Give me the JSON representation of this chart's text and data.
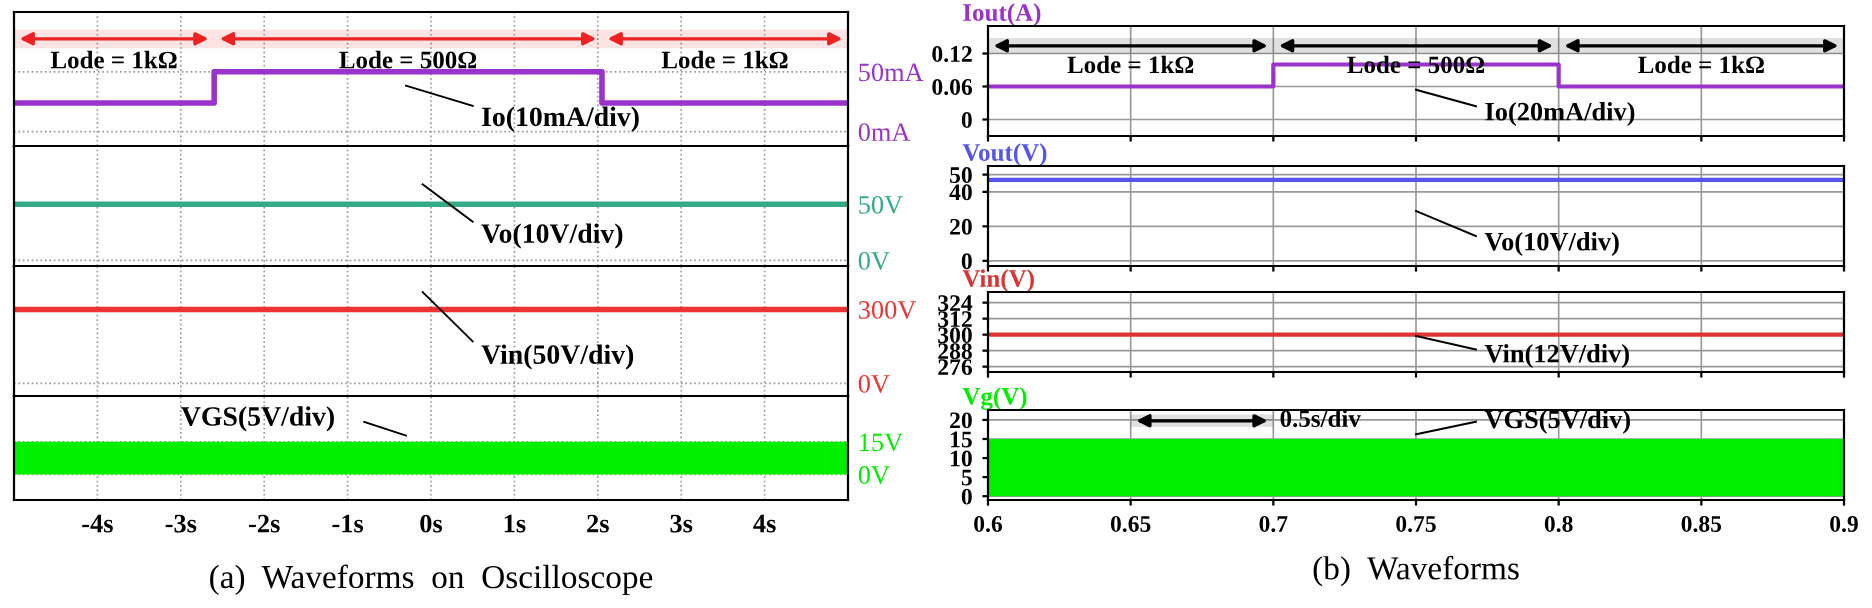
{
  "chart_data": [
    {
      "type": "line",
      "xlim": [
        -5,
        5
      ],
      "xticks": [
        {
          "value": -4,
          "label": null
        },
        {
          "value": -3,
          "label": null
        },
        {
          "value": -2,
          "label": null
        },
        {
          "value": -1,
          "label": null
        },
        {
          "value": 0,
          "label": null
        },
        {
          "value": 1,
          "label": null
        },
        {
          "value": 2,
          "label": null
        },
        {
          "value": 3,
          "label": null
        },
        {
          "value": 4,
          "label": null
        }
      ],
      "ylim": [
        -12,
        100
      ],
      "yticks": [
        {
          "value": 0,
          "label": "0mA"
        },
        {
          "value": 50,
          "label": "50mA"
        }
      ],
      "tick_labels": "y",
      "grid": true,
      "series": [
        {
          "color": "#9933cc",
          "x": [
            -5,
            -2.6,
            -2.6,
            2.05,
            2.05,
            5
          ],
          "values": [
            24,
            24,
            50,
            50,
            24,
            24
          ]
        }
      ],
      "bands": [
        {
          "axis": "x",
          "from": -5,
          "to": -2.6,
          "label": "Lode = 1kΩ",
          "color": "#ee2222"
        },
        {
          "axis": "x",
          "from": -2.6,
          "to": 2.05,
          "label": "Lode = 500Ω",
          "color": "#ee2222"
        },
        {
          "axis": "x",
          "from": 2.05,
          "to": 5,
          "label": "Lode = 1kΩ",
          "color": "#ee2222"
        }
      ],
      "annotations": [
        "Io(10mA/div)"
      ]
    },
    {
      "type": "line",
      "xlim": [
        -5,
        5
      ],
      "xticks": [
        {
          "value": -4,
          "label": null
        },
        {
          "value": -3,
          "label": null
        },
        {
          "value": -2,
          "label": null
        },
        {
          "value": -1,
          "label": null
        },
        {
          "value": 0,
          "label": null
        },
        {
          "value": 1,
          "label": null
        },
        {
          "value": 2,
          "label": null
        },
        {
          "value": 3,
          "label": null
        },
        {
          "value": 4,
          "label": null
        }
      ],
      "ylim": [
        -5,
        102
      ],
      "yticks": [
        {
          "value": 0,
          "label": "0V"
        },
        {
          "value": 50,
          "label": "50V"
        }
      ],
      "tick_labels": "y",
      "grid": true,
      "series": [
        {
          "color": "#33aa88",
          "x": [
            -5,
            5
          ],
          "values": [
            50,
            50
          ]
        }
      ],
      "annotations": [
        "Vo(10V/div)"
      ]
    },
    {
      "type": "line",
      "xlim": [
        -5,
        5
      ],
      "xticks": [
        {
          "value": -4,
          "label": null
        },
        {
          "value": -3,
          "label": null
        },
        {
          "value": -2,
          "label": null
        },
        {
          "value": -1,
          "label": null
        },
        {
          "value": 0,
          "label": null
        },
        {
          "value": 1,
          "label": null
        },
        {
          "value": 2,
          "label": null
        },
        {
          "value": 3,
          "label": null
        },
        {
          "value": 4,
          "label": null
        }
      ],
      "ylim": [
        -51,
        476
      ],
      "yticks": [
        {
          "value": 0,
          "label": "0V"
        },
        {
          "value": 300,
          "label": "300V"
        }
      ],
      "tick_labels": "y",
      "grid": true,
      "series": [
        {
          "color": "#ee3333",
          "x": [
            -5,
            5
          ],
          "values": [
            300,
            300
          ]
        }
      ],
      "annotations": [
        "Vin(50V/div)"
      ]
    },
    {
      "type": "area",
      "xlim": [
        -5,
        5
      ],
      "xticks": [
        {
          "value": -4,
          "label": "-4s"
        },
        {
          "value": -3,
          "label": "-3s"
        },
        {
          "value": -2,
          "label": "-2s"
        },
        {
          "value": -1,
          "label": "-1s"
        },
        {
          "value": 0,
          "label": "0s"
        },
        {
          "value": 1,
          "label": "1s"
        },
        {
          "value": 2,
          "label": "2s"
        },
        {
          "value": 3,
          "label": "3s"
        },
        {
          "value": 4,
          "label": "4s"
        }
      ],
      "ylim": [
        -11.7,
        36
      ],
      "yticks": [
        {
          "value": 0,
          "label": "0V"
        },
        {
          "value": 15,
          "label": "15V"
        }
      ],
      "grid": true,
      "series": [
        {
          "color": "#00ee00",
          "x": [
            -5,
            5
          ],
          "values": [
            15,
            15
          ]
        }
      ],
      "annotations": [
        "VGS(5V/div)",
        "(a)  Waveforms  on  Oscilloscope"
      ]
    },
    {
      "type": "line",
      "ylabel": "Iout(A)",
      "xlim": [
        0.6,
        0.9
      ],
      "xticks": [
        {
          "value": 0.6,
          "label": null
        },
        {
          "value": 0.65,
          "label": null
        },
        {
          "value": 0.7,
          "label": null
        },
        {
          "value": 0.75,
          "label": null
        },
        {
          "value": 0.8,
          "label": null
        },
        {
          "value": 0.85,
          "label": null
        },
        {
          "value": 0.9,
          "label": null
        }
      ],
      "ylim": [
        -0.03,
        0.17
      ],
      "yticks": [
        0,
        0.06,
        0.12
      ],
      "tick_labels": "y",
      "grid": true,
      "series": [
        {
          "color": "#9933cc",
          "x": [
            0.6,
            0.7,
            0.7,
            0.8,
            0.8,
            0.9
          ],
          "values": [
            0.06,
            0.06,
            0.1,
            0.1,
            0.06,
            0.06
          ]
        }
      ],
      "bands": [
        {
          "axis": "x",
          "from": 0.6,
          "to": 0.7,
          "label": "Lode = 1kΩ",
          "color": "#000000"
        },
        {
          "axis": "x",
          "from": 0.7,
          "to": 0.8,
          "label": "Lode = 500Ω",
          "color": "#000000"
        },
        {
          "axis": "x",
          "from": 0.8,
          "to": 0.9,
          "label": "Lode = 1kΩ",
          "color": "#000000"
        }
      ],
      "annotations": [
        "Io(20mA/div)"
      ]
    },
    {
      "type": "line",
      "ylabel": "Vout(V)",
      "xlim": [
        0.6,
        0.9
      ],
      "xticks": [
        {
          "value": 0.6,
          "label": null
        },
        {
          "value": 0.65,
          "label": null
        },
        {
          "value": 0.7,
          "label": null
        },
        {
          "value": 0.75,
          "label": null
        },
        {
          "value": 0.8,
          "label": null
        },
        {
          "value": 0.85,
          "label": null
        },
        {
          "value": 0.9,
          "label": null
        }
      ],
      "ylim": [
        -3,
        55
      ],
      "yticks": [
        0,
        20,
        40,
        50
      ],
      "tick_labels": "y",
      "grid": true,
      "series": [
        {
          "color": "#5555ee",
          "x": [
            0.6,
            0.9
          ],
          "values": [
            47,
            47
          ]
        }
      ],
      "annotations": [
        "Vo(10V/div)"
      ]
    },
    {
      "type": "line",
      "ylabel": "Vin(V)",
      "xlim": [
        0.6,
        0.9
      ],
      "xticks": [
        {
          "value": 0.6,
          "label": null
        },
        {
          "value": 0.65,
          "label": null
        },
        {
          "value": 0.7,
          "label": null
        },
        {
          "value": 0.75,
          "label": null
        },
        {
          "value": 0.8,
          "label": null
        },
        {
          "value": 0.85,
          "label": null
        },
        {
          "value": 0.9,
          "label": null
        }
      ],
      "ylim": [
        272,
        332
      ],
      "yticks": [
        276,
        288,
        300,
        312,
        324
      ],
      "tick_labels": "y",
      "grid": true,
      "series": [
        {
          "color": "#dd3333",
          "x": [
            0.6,
            0.9
          ],
          "values": [
            300,
            300
          ]
        }
      ],
      "annotations": [
        "Vin(12V/div)"
      ]
    },
    {
      "type": "area",
      "ylabel": "Vg(V)",
      "xlim": [
        0.6,
        0.9
      ],
      "xticks": [
        0.6,
        0.65,
        0.7,
        0.75,
        0.8,
        0.85,
        0.9
      ],
      "ylim": [
        -1,
        22.6
      ],
      "yticks": [
        0,
        5,
        10,
        15,
        20
      ],
      "grid": true,
      "series": [
        {
          "color": "#00ee00",
          "x": [
            0.6,
            0.9
          ],
          "values": [
            15,
            15
          ]
        }
      ],
      "bands": [
        {
          "axis": "x",
          "from": 0.65,
          "to": 0.7,
          "label": "0.5s/div",
          "color": "#000000"
        }
      ],
      "annotations": [
        "VGS(5V/div)",
        "(b)  Waveforms"
      ]
    }
  ]
}
